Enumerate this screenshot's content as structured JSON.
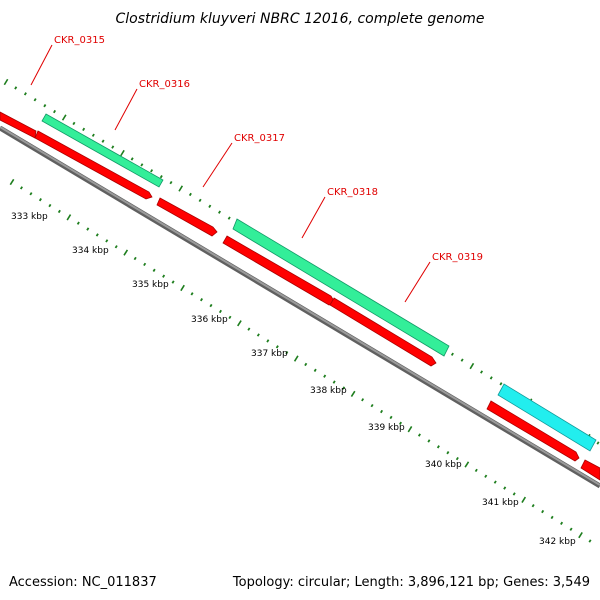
{
  "title": "Clostridium kluyveri NBRC 12016, complete genome",
  "footer": {
    "accession": "Accession: NC_011837",
    "summary": "Topology: circular; Length: 3,896,121 bp; Genes: 3,549"
  },
  "colors": {
    "cds": "#ff0000",
    "gene_green": "#33ee99",
    "gene_cyan": "#22eeee",
    "label": "#e00000",
    "ticks": "#1e7e1e",
    "backbone": "#808080"
  },
  "gene_labels": [
    "CKR_0315",
    "CKR_0316",
    "CKR_0317",
    "CKR_0318",
    "CKR_0319"
  ],
  "scale_labels": [
    "333 kbp",
    "334 kbp",
    "335 kbp",
    "336 kbp",
    "337 kbp",
    "338 kbp",
    "339 kbp",
    "340 kbp",
    "341 kbp",
    "342 kbp"
  ]
}
